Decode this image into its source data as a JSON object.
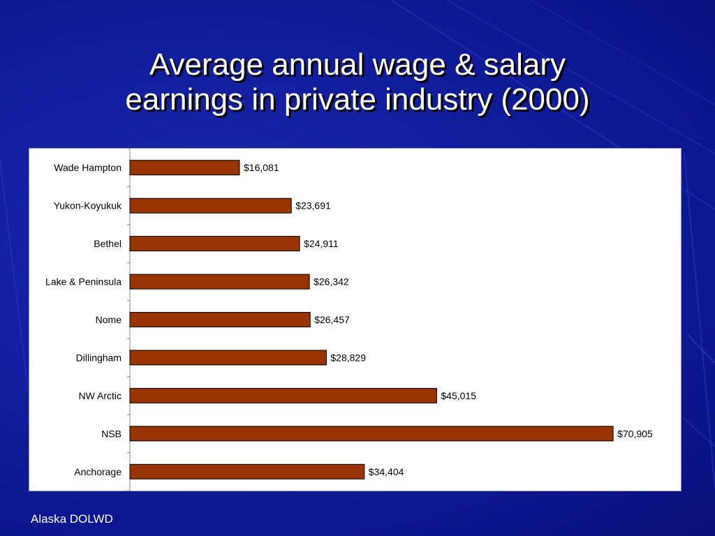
{
  "slide": {
    "title_line1": "Average annual wage & salary",
    "title_line2": "earnings in private industry (2000)",
    "source": "Alaska DOLWD"
  },
  "colors": {
    "background": "#1220a0",
    "bar_fill": "#993300",
    "bar_stroke": "#000000"
  },
  "chart_data": {
    "type": "bar",
    "orientation": "horizontal",
    "title": "",
    "xlabel": "",
    "ylabel": "",
    "categories": [
      "Wade Hampton",
      "Yukon-Koyukuk",
      "Bethel",
      "Lake & Peninsula",
      "Nome",
      "Dillingham",
      "NW Arctic",
      "NSB",
      "Anchorage"
    ],
    "values": [
      16081,
      23691,
      24911,
      26342,
      26457,
      28829,
      45015,
      70905,
      34404
    ],
    "data_labels": [
      "$16,081",
      "$23,691",
      "$24,911",
      "$26,342",
      "$26,457",
      "$28,829",
      "$45,015",
      "$70,905",
      "$34,404"
    ],
    "xlim": [
      0,
      71000
    ],
    "grid": false,
    "legend": "none"
  }
}
